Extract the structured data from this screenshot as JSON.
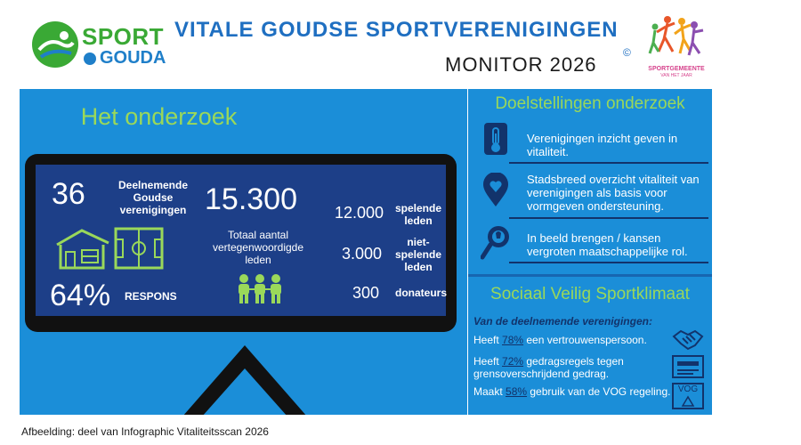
{
  "header": {
    "logo": {
      "sport": "SPORT",
      "gouda": "GOUDA"
    },
    "title": "VITALE GOUDSE SPORTVERENIGINGEN",
    "subtitle": "MONITOR 2026",
    "copyright": "©",
    "badge": {
      "line1": "SPORTGEMEENTE",
      "line2": "VAN HET JAAR"
    }
  },
  "onderzoek": {
    "title": "Het onderzoek",
    "verenigingen_count": "36",
    "verenigingen_label": "Deelnemende Goudse verenigingen",
    "leden_total": "15.300",
    "leden_total_label": "Totaal aantal vertegenwoordigde leden",
    "respons_pct": "64%",
    "respons_label": "RESPONS",
    "breakdown": [
      {
        "value": "12.000",
        "label": "spelende leden"
      },
      {
        "value": "3.000",
        "label": "niet-spelende leden"
      },
      {
        "value": "300",
        "label": "donateurs"
      }
    ]
  },
  "doelstellingen": {
    "title": "Doelstellingen onderzoek",
    "items": [
      {
        "icon": "thermometer-icon",
        "text": "Verenigingen inzicht geven in vitaliteit."
      },
      {
        "icon": "location-heart-icon",
        "text": "Stadsbreed overzicht vitaliteit van verenigingen als basis voor vormgeven ondersteuning."
      },
      {
        "icon": "magnifier-bulb-icon",
        "text": "In beeld brengen / kansen vergroten maatschappelijke rol."
      }
    ]
  },
  "sociaal": {
    "title": "Sociaal Veilig Sportklimaat",
    "intro": "Van de deelnemende verenigingen:",
    "items": [
      {
        "pre": "Heeft ",
        "pct": "78%",
        "post": " een vertrouwenspersoon.",
        "icon": "handshake-icon"
      },
      {
        "pre": "Heeft ",
        "pct": "72%",
        "post": " gedragsregels tegen grensoverschrijdend gedrag.",
        "icon": "document-icon"
      },
      {
        "pre": "Maakt ",
        "pct": "58%",
        "post": " gebruik van de VOG regeling.",
        "icon": "vog-icon",
        "icon_text": "VOG"
      }
    ]
  },
  "caption": "Afbeelding: deel van Infographic Vitaliteitsscan 2026",
  "colors": {
    "blue_panel": "#1b8ed8",
    "navy": "#1d3f88",
    "green": "#9ad85a",
    "dark_navy": "#12336b"
  }
}
